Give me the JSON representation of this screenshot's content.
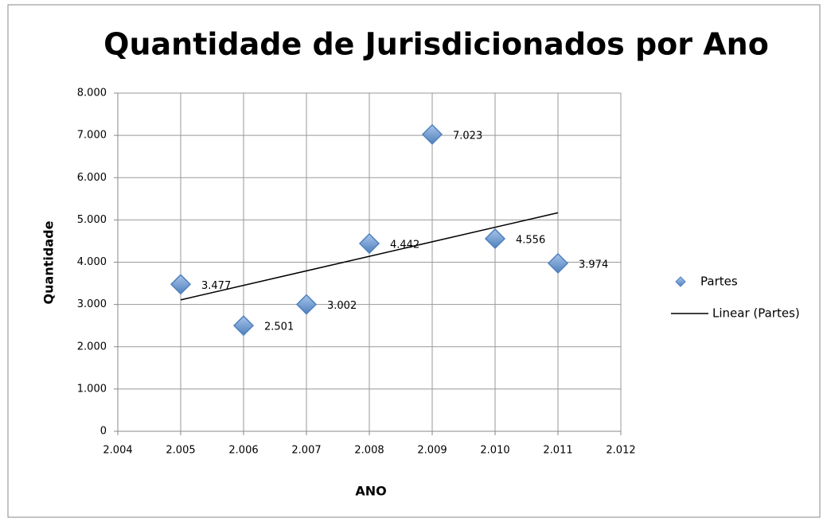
{
  "chart_data": {
    "type": "scatter",
    "title": "Quantidade de Jurisdicionados por Ano",
    "xlabel": "ANO",
    "ylabel": "Quantidade",
    "series": [
      {
        "name": "Partes",
        "color": "#4f81bd",
        "x": [
          2005,
          2006,
          2007,
          2008,
          2009,
          2010,
          2011
        ],
        "values": [
          3477,
          2501,
          3002,
          4442,
          7023,
          4556,
          3974
        ],
        "value_labels": [
          "3.477",
          "2.501",
          "3.002",
          "4.442",
          "7.023",
          "4.556",
          "3.974"
        ]
      },
      {
        "name": "Linear (Partes)",
        "color": "#000000",
        "line": true,
        "x": [
          2005,
          2011
        ],
        "values": [
          3108,
          5170
        ]
      }
    ],
    "xlim": [
      2004,
      2012
    ],
    "xticks": [
      {
        "value": 2004,
        "label": "2.004"
      },
      {
        "value": 2005,
        "label": "2.005"
      },
      {
        "value": 2006,
        "label": "2.006"
      },
      {
        "value": 2007,
        "label": "2.007"
      },
      {
        "value": 2008,
        "label": "2.008"
      },
      {
        "value": 2009,
        "label": "2.009"
      },
      {
        "value": 2010,
        "label": "2.010"
      },
      {
        "value": 2011,
        "label": "2.011"
      },
      {
        "value": 2012,
        "label": "2.012"
      }
    ],
    "ylim": [
      0,
      8000
    ],
    "yticks": [
      0,
      {
        "value": 1000,
        "label": "1.000"
      },
      {
        "value": 2000,
        "label": "2.000"
      },
      {
        "value": 3000,
        "label": "3.000"
      },
      {
        "value": 4000,
        "label": "4.000"
      },
      {
        "value": 5000,
        "label": "5.000"
      },
      {
        "value": 6000,
        "label": "6.000"
      },
      {
        "value": 7000,
        "label": "7.000"
      },
      {
        "value": 8000,
        "label": "8.000"
      }
    ],
    "grid": true,
    "legend": "right"
  }
}
